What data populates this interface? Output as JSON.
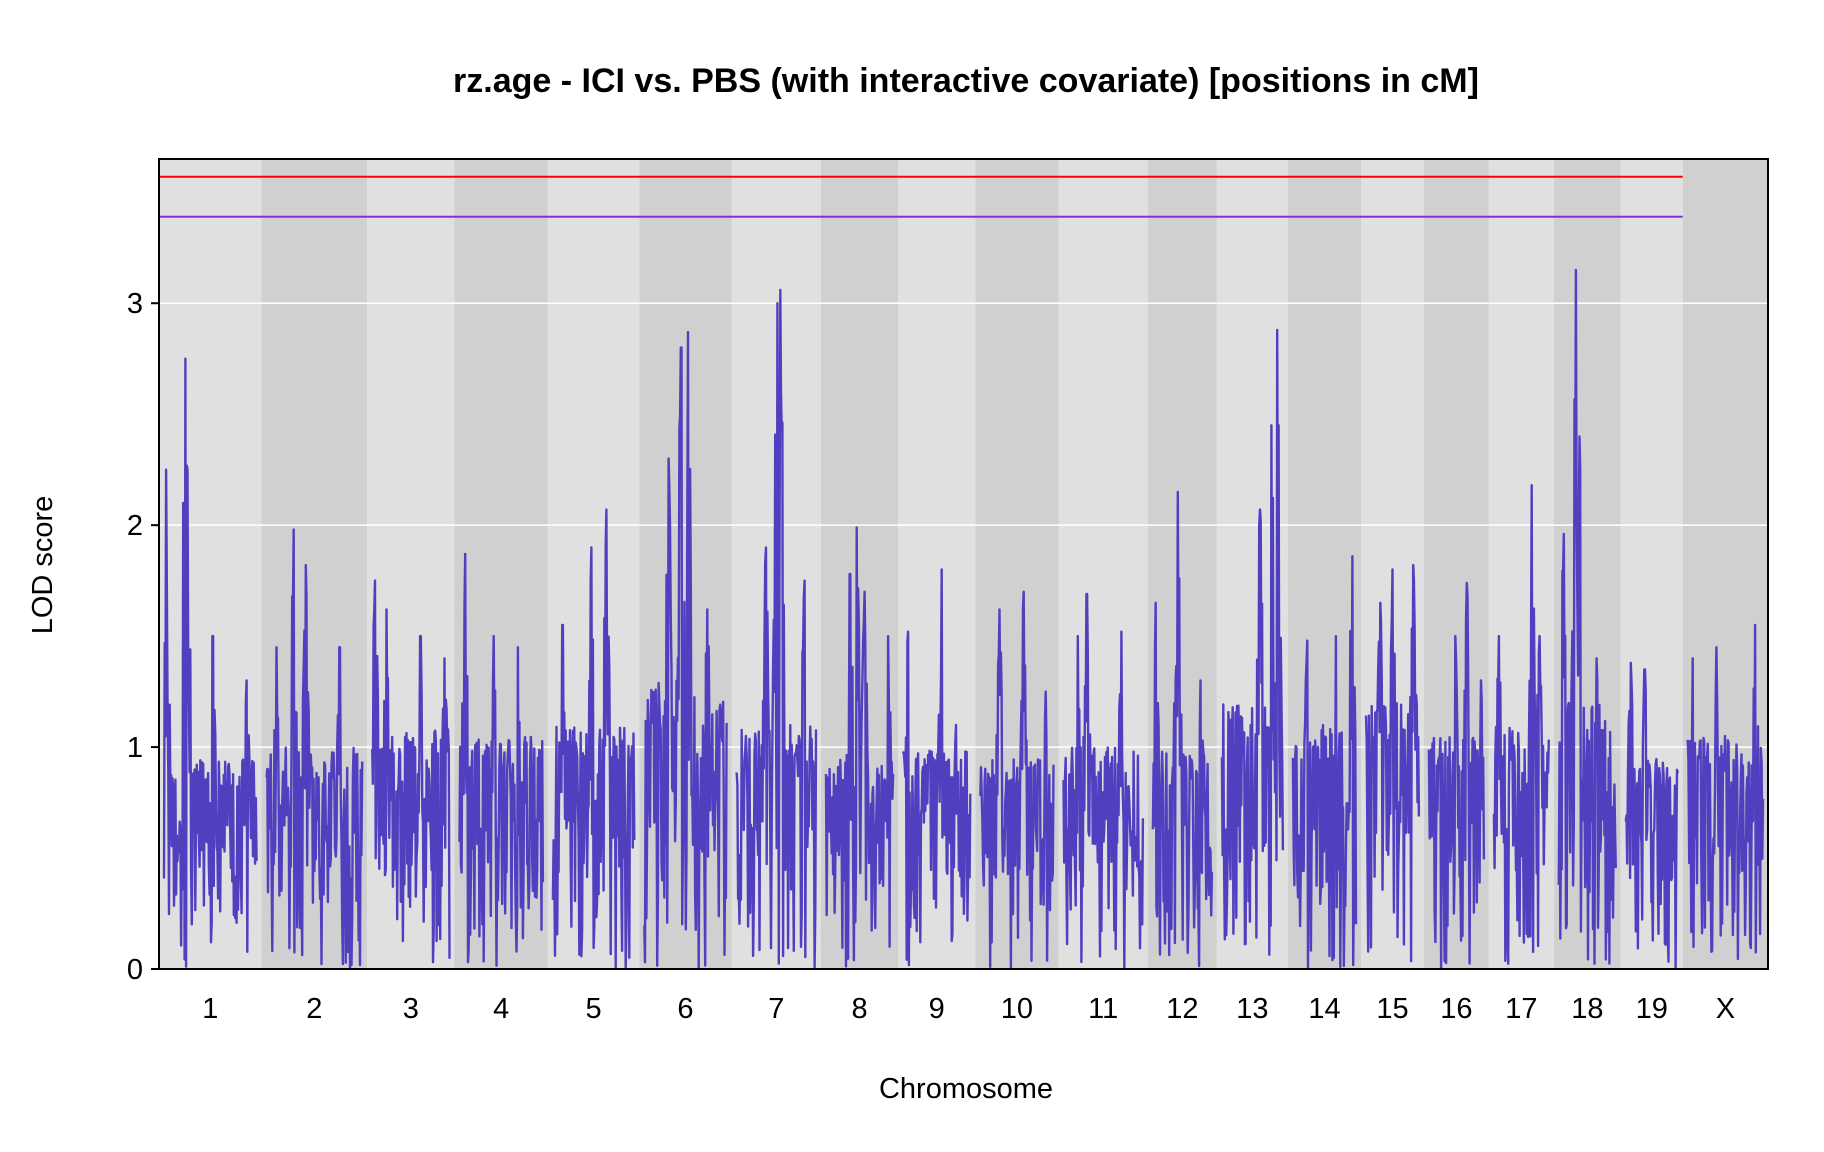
{
  "chart_data": {
    "type": "line",
    "title": "rz.age - ICI vs. PBS (with interactive covariate) [positions in cM]",
    "xlabel": "Chromosome",
    "ylabel": "LOD score",
    "ylim": [
      0,
      3.65
    ],
    "y_ticks": [
      "0",
      "1",
      "2",
      "3"
    ],
    "grid": true,
    "series_color": "#5040C0",
    "background_colors": [
      "#E0E0E0",
      "#D0D0D0"
    ],
    "thresholds": [
      {
        "value": 3.57,
        "color": "#FF0000"
      },
      {
        "value": 3.39,
        "color": "#8A2BE2"
      }
    ],
    "chromosomes": [
      {
        "label": "1",
        "length": 95,
        "baseline": 0.95,
        "peaks": [
          [
            2,
            2.25
          ],
          [
            20,
            2.1
          ],
          [
            22,
            2.75
          ],
          [
            24,
            2.25
          ],
          [
            50,
            1.5
          ],
          [
            85,
            1.3
          ]
        ]
      },
      {
        "label": "2",
        "length": 98,
        "baseline": 1.0,
        "peaks": [
          [
            10,
            1.45
          ],
          [
            28,
            1.98
          ],
          [
            40,
            1.82
          ],
          [
            75,
            1.45
          ]
        ]
      },
      {
        "label": "3",
        "length": 80,
        "baseline": 1.1,
        "peaks": [
          [
            3,
            1.75
          ],
          [
            15,
            1.62
          ],
          [
            50,
            1.5
          ],
          [
            75,
            1.4
          ]
        ]
      },
      {
        "label": "4",
        "length": 86,
        "baseline": 1.05,
        "peaks": [
          [
            6,
            1.87
          ],
          [
            35,
            1.5
          ],
          [
            60,
            1.45
          ],
          [
            80,
            0.45
          ]
        ]
      },
      {
        "label": "5",
        "length": 84,
        "baseline": 1.1,
        "peaks": [
          [
            10,
            1.55
          ],
          [
            40,
            1.9
          ],
          [
            55,
            2.07
          ],
          [
            80,
            0.95
          ]
        ]
      },
      {
        "label": "6",
        "length": 85,
        "baseline": 1.3,
        "peaks": [
          [
            25,
            2.3
          ],
          [
            38,
            2.8
          ],
          [
            45,
            2.87
          ],
          [
            65,
            1.62
          ]
        ]
      },
      {
        "label": "7",
        "length": 82,
        "baseline": 1.1,
        "peaks": [
          [
            30,
            1.9
          ],
          [
            42,
            3.0
          ],
          [
            45,
            3.06
          ],
          [
            70,
            1.75
          ]
        ]
      },
      {
        "label": "8",
        "length": 70,
        "baseline": 0.95,
        "peaks": [
          [
            25,
            1.78
          ],
          [
            32,
            1.99
          ],
          [
            40,
            1.7
          ],
          [
            65,
            1.5
          ]
        ]
      },
      {
        "label": "9",
        "length": 70,
        "baseline": 1.0,
        "peaks": [
          [
            5,
            1.52
          ],
          [
            40,
            1.8
          ],
          [
            55,
            1.1
          ]
        ]
      },
      {
        "label": "10",
        "length": 76,
        "baseline": 0.95,
        "peaks": [
          [
            20,
            1.62
          ],
          [
            45,
            1.7
          ],
          [
            68,
            1.25
          ]
        ]
      },
      {
        "label": "11",
        "length": 82,
        "baseline": 1.0,
        "peaks": [
          [
            15,
            1.5
          ],
          [
            24,
            1.69
          ],
          [
            60,
            1.52
          ]
        ]
      },
      {
        "label": "12",
        "length": 62,
        "baseline": 1.0,
        "peaks": [
          [
            3,
            1.65
          ],
          [
            26,
            2.15
          ],
          [
            50,
            1.3
          ]
        ]
      },
      {
        "label": "13",
        "length": 64,
        "baseline": 1.2,
        "peaks": [
          [
            40,
            2.07
          ],
          [
            52,
            2.45
          ],
          [
            58,
            2.88
          ]
        ]
      },
      {
        "label": "14",
        "length": 66,
        "baseline": 1.1,
        "peaks": [
          [
            15,
            1.48
          ],
          [
            45,
            1.5
          ],
          [
            62,
            1.86
          ]
        ]
      },
      {
        "label": "15",
        "length": 56,
        "baseline": 1.2,
        "peaks": [
          [
            15,
            1.65
          ],
          [
            28,
            1.8
          ],
          [
            50,
            1.82
          ]
        ]
      },
      {
        "label": "16",
        "length": 58,
        "baseline": 1.05,
        "peaks": [
          [
            28,
            1.5
          ],
          [
            40,
            1.74
          ],
          [
            55,
            1.3
          ]
        ]
      },
      {
        "label": "17",
        "length": 58,
        "baseline": 1.1,
        "peaks": [
          [
            5,
            1.5
          ],
          [
            40,
            2.18
          ],
          [
            48,
            1.5
          ]
        ]
      },
      {
        "label": "18",
        "length": 60,
        "baseline": 1.2,
        "peaks": [
          [
            5,
            1.96
          ],
          [
            18,
            3.15
          ],
          [
            22,
            2.4
          ],
          [
            40,
            1.4
          ]
        ]
      },
      {
        "label": "19",
        "length": 55,
        "baseline": 0.95,
        "peaks": [
          [
            5,
            1.38
          ],
          [
            20,
            1.35
          ],
          [
            48,
            0.4
          ]
        ]
      },
      {
        "label": "X",
        "length": 78,
        "baseline": 1.05,
        "peaks": [
          [
            5,
            1.4
          ],
          [
            30,
            1.45
          ],
          [
            70,
            1.55
          ]
        ]
      }
    ]
  }
}
